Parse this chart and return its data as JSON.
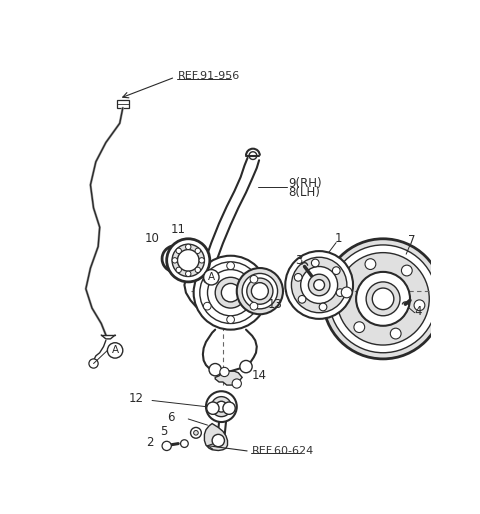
{
  "bg_color": "#ffffff",
  "lc": "#2a2a2a",
  "gray": "#c0c0c0",
  "lgray": "#e0e0e0",
  "figsize": [
    4.8,
    5.14
  ],
  "dpi": 100,
  "labels": {
    "ref_top": "REF.91-956",
    "ref_bot": "REF.60-624",
    "1": "1",
    "2": "2",
    "3": "3",
    "4": "4",
    "5": "5",
    "6": "6",
    "7": "7",
    "8": "8(LH)",
    "9": "9(RH)",
    "10": "10",
    "11": "11",
    "12": "12",
    "13": "13",
    "14": "14",
    "A": "A"
  }
}
